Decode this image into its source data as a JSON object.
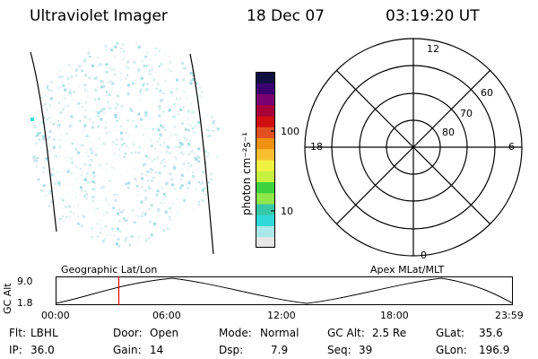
{
  "header": {
    "instrument": "Ultraviolet Imager",
    "date": "18 Dec 07",
    "time": "03:19:20 UT"
  },
  "colorbar": {
    "unit_label": "photon cm⁻²s⁻¹",
    "ticks": [
      {
        "label": "100",
        "value": 100
      },
      {
        "label": "10",
        "value": 10
      }
    ],
    "scale": "log",
    "colors": [
      "#e6e6e6",
      "#a8e8e8",
      "#2fd8d8",
      "#38c8a8",
      "#8ee84a",
      "#3fd23f",
      "#c8f040",
      "#f0f040",
      "#f8c030",
      "#f09010",
      "#e05020",
      "#d01010",
      "#a80038",
      "#7a0070",
      "#3a0070",
      "#101040"
    ]
  },
  "polar_plot": {
    "lat_labels": [
      "80",
      "70",
      "60"
    ],
    "mlt_labels": {
      "top": "12",
      "right": "6",
      "bottom": "0",
      "left": "18"
    }
  },
  "orbit_panel": {
    "left_caption": "Geographic Lat/Lon",
    "right_caption": "Apex MLat/MLT",
    "y_axis_label": "GC Alt",
    "y_ticks": [
      "9.0",
      "1.8"
    ],
    "x_ticks": [
      "00:00",
      "06:00",
      "12:00",
      "18:00",
      "23:59"
    ],
    "current_time_marker_hours": 3.32,
    "marker_color": "#e00000"
  },
  "status": {
    "filter": {
      "label": "Flt:",
      "value": "LBHL"
    },
    "ip": {
      "label": "IP:",
      "value": "36.0"
    },
    "door": {
      "label": "Door:",
      "value": "Open"
    },
    "gain": {
      "label": "Gain:",
      "value": "14"
    },
    "mode": {
      "label": "Mode:",
      "value": "Normal"
    },
    "dsp": {
      "label": "Dsp:",
      "value": "7.9"
    },
    "gc_alt": {
      "label": "GC Alt:",
      "value": "2.5 Re"
    },
    "seq": {
      "label": "Seq:",
      "value": "39"
    },
    "glat": {
      "label": "GLat:",
      "value": "35.6"
    },
    "glon": {
      "label": "GLon:",
      "value": "196.9"
    }
  }
}
